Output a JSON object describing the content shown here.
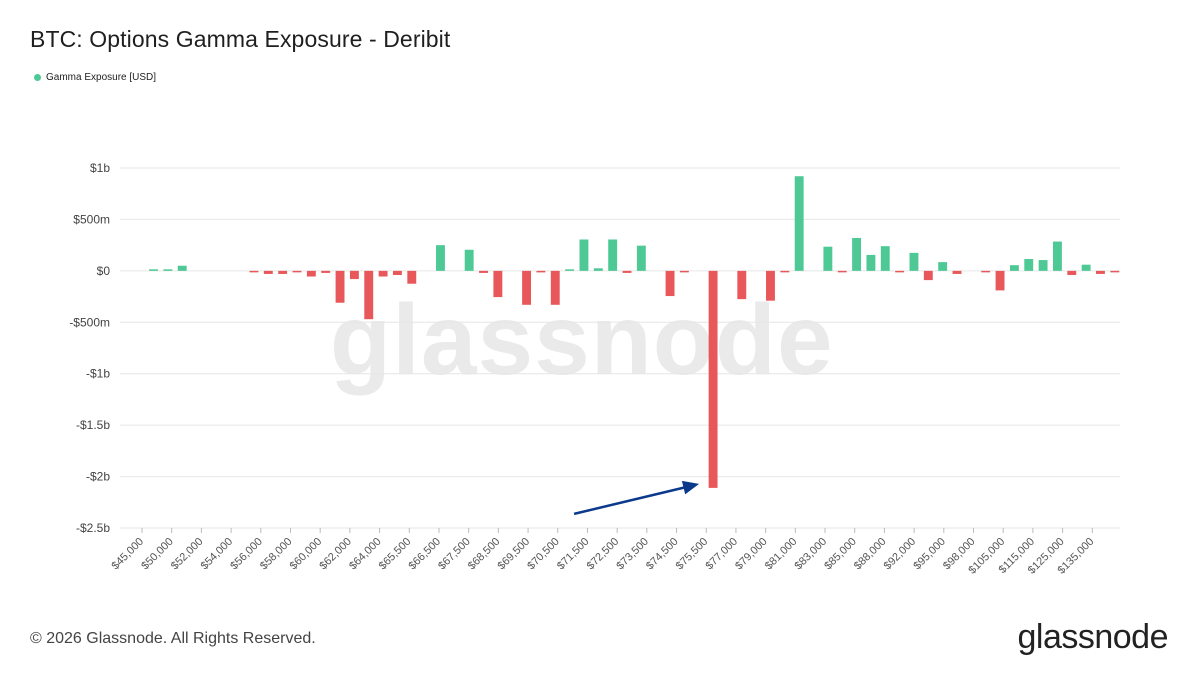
{
  "header": {
    "title": "BTC: Options Gamma Exposure - Deribit"
  },
  "legend": {
    "label": "Gamma Exposure [USD]"
  },
  "watermark": "glassnode",
  "footer": {
    "copyright": "© 2026 Glassnode. All Rights Reserved.",
    "logo": "glassnode"
  },
  "colors": {
    "positive": "#4ec996",
    "negative": "#e8575a",
    "arrow": "#0b3a8c",
    "grid": "#e6e6e6"
  },
  "chart_data": {
    "type": "bar",
    "title": "BTC: Options Gamma Exposure - Deribit",
    "xlabel": "",
    "ylabel": "",
    "ylim": [
      -2500000000,
      1000000000
    ],
    "grid": true,
    "legend_position": "top-left",
    "y_ticks": [
      {
        "value": 1000000000,
        "label": "$1b"
      },
      {
        "value": 500000000,
        "label": "$500m"
      },
      {
        "value": 0,
        "label": "$0"
      },
      {
        "value": -500000000,
        "label": "-$500m"
      },
      {
        "value": -1000000000,
        "label": "-$1b"
      },
      {
        "value": -1500000000,
        "label": "-$1.5b"
      },
      {
        "value": -2000000000,
        "label": "-$2b"
      },
      {
        "value": -2500000000,
        "label": "-$2.5b"
      }
    ],
    "x_tick_labels": [
      "$45,000",
      "$50,000",
      "$52,000",
      "$54,000",
      "$56,000",
      "$58,000",
      "$60,000",
      "$62,000",
      "$64,000",
      "$65,500",
      "$66,500",
      "$67,500",
      "$68,500",
      "$69,500",
      "$70,500",
      "$71,500",
      "$72,500",
      "$73,500",
      "$74,500",
      "$75,500",
      "$77,000",
      "$79,000",
      "$81,000",
      "$83,000",
      "$85,000",
      "$88,000",
      "$92,000",
      "$95,000",
      "$98,000",
      "$105,000",
      "$115,000",
      "$125,000",
      "$135,000"
    ],
    "series": [
      {
        "name": "Gamma Exposure [USD]",
        "values": [
          0,
          15000000,
          15000000,
          50000000,
          0,
          0,
          0,
          0,
          -10000000,
          -30000000,
          -30000000,
          -10000000,
          -55000000,
          -20000000,
          -310000000,
          -80000000,
          -470000000,
          -55000000,
          -40000000,
          -125000000,
          0,
          250000000,
          0,
          205000000,
          -20000000,
          -255000000,
          0,
          -330000000,
          -15000000,
          -330000000,
          15000000,
          305000000,
          25000000,
          305000000,
          -20000000,
          245000000,
          0,
          -245000000,
          -10000000,
          0,
          -2110000000,
          0,
          -275000000,
          0,
          -290000000,
          -10000000,
          920000000,
          0,
          235000000,
          -10000000,
          320000000,
          155000000,
          240000000,
          -10000000,
          175000000,
          -90000000,
          85000000,
          -30000000,
          0,
          -10000000,
          -190000000,
          55000000,
          115000000,
          105000000,
          285000000,
          -40000000,
          60000000,
          -30000000,
          -10000000
        ]
      }
    ],
    "annotations": [
      {
        "type": "arrow",
        "points_to_bar_index": 40
      }
    ]
  }
}
